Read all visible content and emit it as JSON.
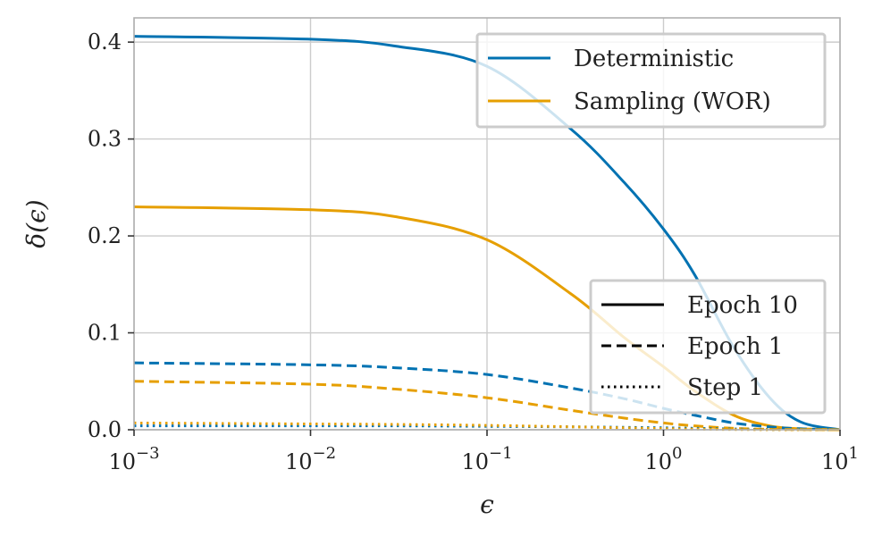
{
  "chart_data": {
    "type": "line",
    "xscale": "log",
    "xlim": [
      0.001,
      10
    ],
    "ylim": [
      0,
      0.425
    ],
    "xlabel": "ϵ",
    "ylabel": "δ(ϵ)",
    "grid": true,
    "x_ticks": [
      {
        "value": 0.001,
        "base": "10",
        "exp": "−3"
      },
      {
        "value": 0.01,
        "base": "10",
        "exp": "−2"
      },
      {
        "value": 0.1,
        "base": "10",
        "exp": "−1"
      },
      {
        "value": 1,
        "base": "10",
        "exp": "0"
      },
      {
        "value": 10,
        "base": "10",
        "exp": "1"
      }
    ],
    "y_ticks": [
      {
        "value": 0.0,
        "label": "0.0"
      },
      {
        "value": 0.1,
        "label": "0.1"
      },
      {
        "value": 0.2,
        "label": "0.2"
      },
      {
        "value": 0.3,
        "label": "0.3"
      },
      {
        "value": 0.4,
        "label": "0.4"
      }
    ],
    "x": [
      0.001,
      0.01,
      0.03,
      0.1,
      0.3,
      0.6,
      1,
      1.5,
      2.5,
      4,
      6,
      10
    ],
    "series": [
      {
        "name": "Deterministic, Epoch 10",
        "method": "Deterministic",
        "horizon": "Epoch 10",
        "color": "#0072B2",
        "dash": "solid",
        "values": [
          0.406,
          0.403,
          0.396,
          0.375,
          0.31,
          0.255,
          0.207,
          0.16,
          0.085,
          0.033,
          0.008,
          0.0
        ]
      },
      {
        "name": "Sampling (WOR), Epoch 10",
        "method": "Sampling (WOR)",
        "horizon": "Epoch 10",
        "color": "#E69F00",
        "dash": "solid",
        "values": [
          0.23,
          0.227,
          0.22,
          0.196,
          0.14,
          0.095,
          0.065,
          0.04,
          0.015,
          0.004,
          0.001,
          0.0
        ]
      },
      {
        "name": "Deterministic, Epoch 1",
        "method": "Deterministic",
        "horizon": "Epoch 1",
        "color": "#0072B2",
        "dash": "dashed",
        "values": [
          0.069,
          0.067,
          0.064,
          0.057,
          0.043,
          0.032,
          0.022,
          0.015,
          0.007,
          0.003,
          0.001,
          0.0
        ]
      },
      {
        "name": "Sampling (WOR), Epoch 1",
        "method": "Sampling (WOR)",
        "horizon": "Epoch 1",
        "color": "#E69F00",
        "dash": "dashed",
        "values": [
          0.05,
          0.047,
          0.042,
          0.033,
          0.02,
          0.012,
          0.007,
          0.004,
          0.0015,
          0.0005,
          0.0002,
          0.0
        ]
      },
      {
        "name": "Deterministic, Step 1",
        "method": "Deterministic",
        "horizon": "Step 1",
        "color": "#0072B2",
        "dash": "dotted",
        "values": [
          0.004,
          0.004,
          0.004,
          0.0035,
          0.003,
          0.0025,
          0.002,
          0.0015,
          0.0008,
          0.0003,
          0.0001,
          0.0
        ]
      },
      {
        "name": "Sampling (WOR), Step 1",
        "method": "Sampling (WOR)",
        "horizon": "Step 1",
        "color": "#E69F00",
        "dash": "dotted",
        "values": [
          0.007,
          0.006,
          0.0055,
          0.0045,
          0.003,
          0.002,
          0.0012,
          0.0007,
          0.0003,
          0.0001,
          0.0,
          0.0
        ]
      }
    ],
    "legend_methods": {
      "placement": "top-right",
      "entries": [
        {
          "label": "Deterministic",
          "color": "#0072B2"
        },
        {
          "label": "Sampling (WOR)",
          "color": "#E69F00"
        }
      ]
    },
    "legend_horizons": {
      "placement": "bottom-right",
      "entries": [
        {
          "label": "Epoch 10",
          "dash": "solid"
        },
        {
          "label": "Epoch 1",
          "dash": "dashed"
        },
        {
          "label": "Step 1",
          "dash": "dotted"
        }
      ]
    }
  }
}
